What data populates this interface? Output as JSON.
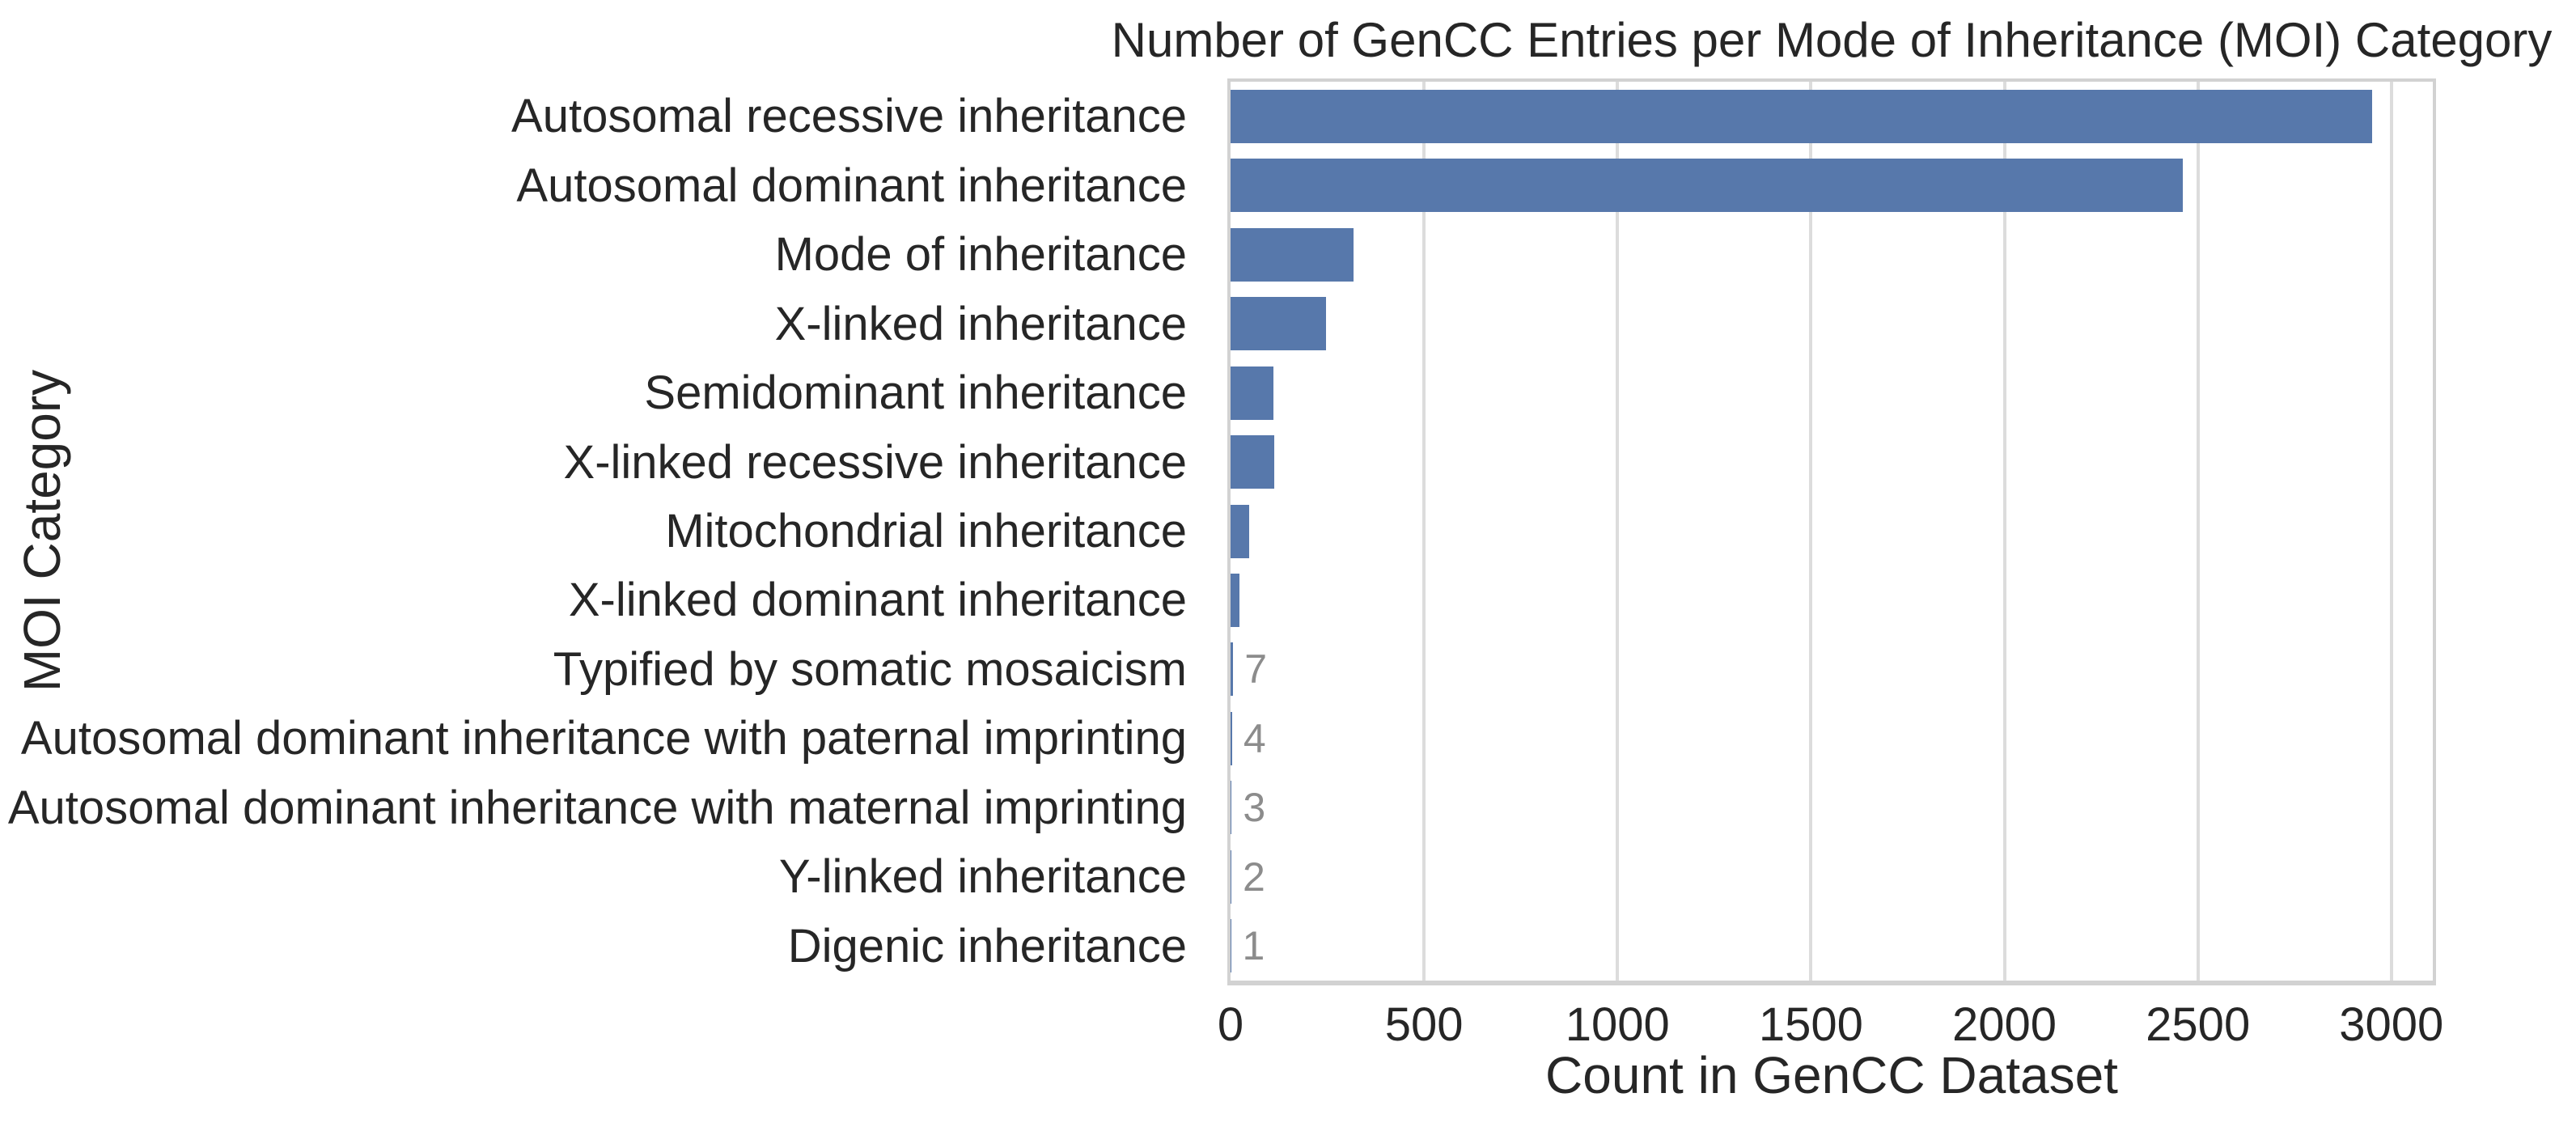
{
  "chart_data": {
    "type": "bar",
    "orientation": "horizontal",
    "title": "Number of GenCC Entries per Mode of Inheritance (MOI) Category",
    "xlabel": "Count in GenCC Dataset",
    "ylabel": "MOI Category",
    "categories": [
      "Autosomal recessive inheritance",
      "Autosomal dominant inheritance",
      "Mode of inheritance",
      "X-linked inheritance",
      "Semidominant inheritance",
      "X-linked recessive inheritance",
      "Mitochondrial inheritance",
      "X-linked dominant inheritance",
      "Typified by somatic mosaicism",
      "Autosomal dominant inheritance with paternal imprinting",
      "Autosomal dominant inheritance with maternal imprinting",
      "Y-linked inheritance",
      "Digenic inheritance"
    ],
    "values": [
      2950,
      2460,
      318,
      247,
      110,
      112,
      48,
      22,
      7,
      4,
      3,
      2,
      1
    ],
    "value_labels": [
      "",
      "",
      "",
      "",
      "",
      "",
      "",
      "",
      "7",
      "4",
      "3",
      "2",
      "1"
    ],
    "xticks": [
      0,
      500,
      1000,
      1500,
      2000,
      2500,
      3000
    ],
    "xtick_labels": [
      "0",
      "500",
      "1000",
      "1500",
      "2000",
      "2500",
      "3000"
    ],
    "xlim": [
      0,
      3107
    ],
    "grid": "vertical",
    "legend": "none",
    "colors": {
      "bar": "#5778ab",
      "grid": "#dcdcdc",
      "spine": "#d2d2d2",
      "text": "#262626",
      "annotation": "#8c8c8c",
      "background": "#ffffff"
    }
  }
}
